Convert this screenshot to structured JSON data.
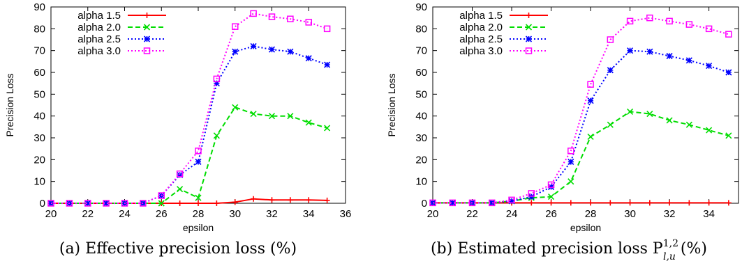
{
  "figure": {
    "panels": [
      {
        "caption": "(a) Effective precision loss (%)"
      },
      {
        "caption": "(b) Estimated precision loss P",
        "caption_sup": "1,2",
        "caption_sub": "l,u",
        "caption_tail": " (%)"
      }
    ]
  },
  "chart_data": [
    {
      "type": "line",
      "title": "",
      "xlabel": "epsilon",
      "ylabel": "Precision Loss",
      "xlim": [
        20,
        36
      ],
      "ylim": [
        0,
        90
      ],
      "xticks": [
        20,
        22,
        24,
        26,
        28,
        30,
        32,
        34,
        36
      ],
      "yticks": [
        0,
        10,
        20,
        30,
        40,
        50,
        60,
        70,
        80,
        90
      ],
      "x": [
        20,
        21,
        22,
        23,
        24,
        25,
        26,
        27,
        28,
        29,
        30,
        31,
        32,
        33,
        34,
        35
      ],
      "legend": "top-left",
      "series": [
        {
          "name": "alpha 1.5",
          "color": "#ff0000",
          "dash": "solid",
          "marker": "plus",
          "values": [
            0,
            0,
            0,
            0,
            0,
            0,
            0,
            0,
            0,
            0,
            0.5,
            2,
            1.5,
            1.5,
            1.5,
            1.3
          ]
        },
        {
          "name": "alpha 2.0",
          "color": "#00dd00",
          "dash": "dashed",
          "marker": "x",
          "values": [
            0,
            0,
            0,
            0,
            0,
            0,
            0,
            6.5,
            2.5,
            31,
            44,
            41,
            40,
            40,
            37,
            34.5
          ]
        },
        {
          "name": "alpha 2.5",
          "color": "#0000ff",
          "dash": "dotted",
          "marker": "star",
          "values": [
            0,
            0,
            0,
            0,
            0,
            0,
            3.5,
            13,
            19,
            55,
            69.5,
            72,
            70.5,
            69.5,
            66.5,
            63.5
          ]
        },
        {
          "name": "alpha 3.0",
          "color": "#ff00ff",
          "dash": "dotted",
          "marker": "square",
          "values": [
            0,
            0,
            0,
            0,
            0,
            0,
            3.5,
            13.5,
            24,
            57,
            81,
            87,
            85.5,
            84.5,
            83,
            80
          ]
        }
      ]
    },
    {
      "type": "line",
      "title": "",
      "xlabel": "epsilon",
      "ylabel": "Precision Loss",
      "xlim": [
        20,
        35.5
      ],
      "ylim": [
        0,
        90
      ],
      "xticks": [
        20,
        22,
        24,
        26,
        28,
        30,
        32,
        34
      ],
      "yticks": [
        0,
        10,
        20,
        30,
        40,
        50,
        60,
        70,
        80,
        90
      ],
      "x": [
        20,
        21,
        22,
        23,
        24,
        25,
        26,
        27,
        28,
        29,
        30,
        31,
        32,
        33,
        34,
        35
      ],
      "legend": "top-left",
      "series": [
        {
          "name": "alpha 1.5",
          "color": "#ff0000",
          "dash": "solid",
          "marker": "plus",
          "values": [
            0.2,
            0.2,
            0.2,
            0.2,
            0.2,
            0.2,
            0.2,
            0.2,
            0.2,
            0.2,
            0.2,
            0.2,
            0.2,
            0.2,
            0.2,
            0.2
          ]
        },
        {
          "name": "alpha 2.0",
          "color": "#00dd00",
          "dash": "dashed",
          "marker": "x",
          "values": [
            0.2,
            0.2,
            0.2,
            0.2,
            1,
            2.5,
            3,
            10,
            30.5,
            36,
            42,
            41,
            38,
            36,
            33.5,
            31
          ]
        },
        {
          "name": "alpha 2.5",
          "color": "#0000ff",
          "dash": "dotted",
          "marker": "star",
          "values": [
            0.2,
            0.2,
            0.2,
            0.2,
            1,
            3,
            7.5,
            19,
            47,
            61,
            70,
            69.5,
            67.5,
            65.5,
            63,
            60
          ]
        },
        {
          "name": "alpha 3.0",
          "color": "#ff00ff",
          "dash": "dotted",
          "marker": "square",
          "values": [
            0.2,
            0.2,
            0.2,
            0.2,
            1.5,
            4.5,
            8.5,
            24,
            54.5,
            75,
            83.5,
            85,
            83.5,
            82,
            80,
            77.5
          ]
        }
      ]
    }
  ]
}
